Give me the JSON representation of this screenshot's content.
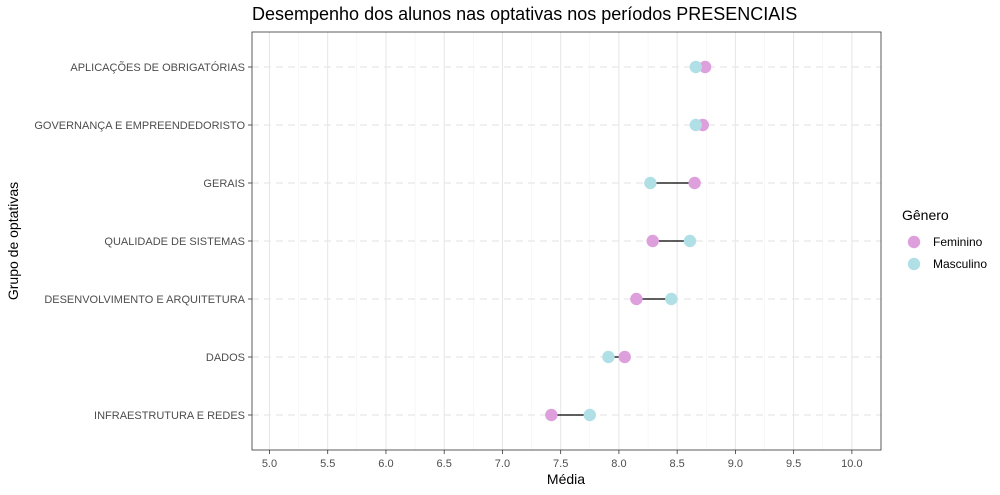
{
  "chart_data": {
    "type": "scatter",
    "subtype": "dumbbell",
    "title": "Desempenho dos alunos nas optativas nos períodos PRESENCIAIS",
    "xlabel": "Média",
    "ylabel": "Grupo de optativas",
    "xlim": [
      4.85,
      10.25
    ],
    "x_ticks": [
      "5.0",
      "5.5",
      "6.0",
      "6.5",
      "7.0",
      "7.5",
      "8.0",
      "8.5",
      "9.0",
      "9.5",
      "10.0"
    ],
    "categories": [
      "APLICAÇÕES DE OBRIGATÓRIAS",
      "GOVERNANÇA E EMPREENDEDORISTO",
      "GERAIS",
      "QUALIDADE DE SISTEMAS",
      "DESENVOLVIMENTO E ARQUITETURA",
      "DADOS",
      "INFRAESTRUTURA E REDES"
    ],
    "series": [
      {
        "name": "Feminino",
        "color": "#dda0dd",
        "values": [
          8.74,
          8.72,
          8.65,
          8.29,
          8.15,
          8.05,
          7.42
        ]
      },
      {
        "name": "Masculino",
        "color": "#b0e0e6",
        "values": [
          8.66,
          8.66,
          8.27,
          8.61,
          8.45,
          7.91,
          7.75
        ]
      }
    ],
    "legend": {
      "title": "Gênero",
      "position": "right"
    },
    "grid": true,
    "segment_color": "#000000"
  }
}
